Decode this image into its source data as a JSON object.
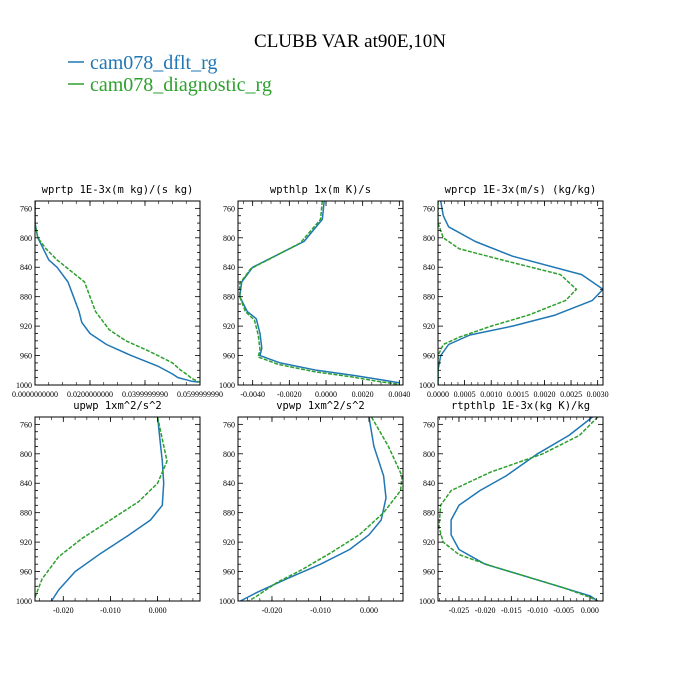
{
  "figure": {
    "title": "CLUBB VAR at90E,10N",
    "legend": [
      {
        "label": "cam078_dflt_rg",
        "color": "#1f77b4",
        "dash": false
      },
      {
        "label": "cam078_diagnostic_rg",
        "color": "#2ca02c",
        "dash": true
      }
    ]
  },
  "chart_data": [
    {
      "type": "line",
      "title": "wprtp  1E-3x(m kg)/(s kg)",
      "xlim": [
        0,
        0.06
      ],
      "ylim": [
        1000,
        750
      ],
      "xticks": [
        0,
        0.02,
        0.04,
        0.06
      ],
      "xtick_labels": [
        "0.0000000000",
        "0.0200000000",
        "0.0399999990",
        "0.0599999990"
      ],
      "yticks": [
        760,
        800,
        840,
        880,
        920,
        960,
        1000
      ],
      "series": [
        {
          "name": "cam078_dflt_rg",
          "points": [
            [
              0.0,
              750
            ],
            [
              0.0,
              780
            ],
            [
              0.001,
              800
            ],
            [
              0.003,
              815
            ],
            [
              0.005,
              830
            ],
            [
              0.008,
              840
            ],
            [
              0.012,
              860
            ],
            [
              0.014,
              880
            ],
            [
              0.016,
              900
            ],
            [
              0.017,
              915
            ],
            [
              0.02,
              930
            ],
            [
              0.026,
              945
            ],
            [
              0.035,
              960
            ],
            [
              0.045,
              975
            ],
            [
              0.05,
              985
            ],
            [
              0.052,
              990
            ],
            [
              0.055,
              993
            ],
            [
              0.057,
              995
            ],
            [
              0.0595,
              996
            ]
          ]
        },
        {
          "name": "cam078_diagnostic_rg",
          "points": [
            [
              0.0,
              750
            ],
            [
              0.0,
              780
            ],
            [
              0.001,
              800
            ],
            [
              0.004,
              815
            ],
            [
              0.008,
              830
            ],
            [
              0.013,
              845
            ],
            [
              0.018,
              860
            ],
            [
              0.02,
              880
            ],
            [
              0.022,
              900
            ],
            [
              0.024,
              910
            ],
            [
              0.027,
              925
            ],
            [
              0.033,
              940
            ],
            [
              0.042,
              955
            ],
            [
              0.05,
              970
            ],
            [
              0.053,
              980
            ],
            [
              0.055,
              985
            ],
            [
              0.057,
              991
            ],
            [
              0.059,
              995
            ],
            [
              0.0598,
              996
            ]
          ]
        }
      ]
    },
    {
      "type": "line",
      "title": "wpthlp  1x(m K)/s",
      "xlim": [
        -0.0048,
        0.0042
      ],
      "ylim": [
        1000,
        750
      ],
      "xticks": [
        -0.004,
        -0.002,
        0,
        0.002,
        0.004
      ],
      "xtick_labels": [
        "-0.0040",
        "-0.0020",
        "0.0000",
        "0.0020",
        "0.0040"
      ],
      "yticks": [
        760,
        800,
        840,
        880,
        920,
        960,
        1000
      ],
      "series": [
        {
          "name": "cam078_dflt_rg",
          "points": [
            [
              -0.0001,
              750
            ],
            [
              -0.0002,
              775
            ],
            [
              -0.0012,
              805
            ],
            [
              -0.004,
              840
            ],
            [
              -0.0046,
              860
            ],
            [
              -0.0047,
              880
            ],
            [
              -0.0043,
              900
            ],
            [
              -0.0038,
              910
            ],
            [
              -0.0036,
              930
            ],
            [
              -0.0035,
              950
            ],
            [
              -0.0036,
              960
            ],
            [
              -0.0025,
              970
            ],
            [
              -0.0005,
              980
            ],
            [
              0.0015,
              987
            ],
            [
              0.003,
              993
            ],
            [
              0.004,
              997
            ]
          ]
        },
        {
          "name": "cam078_diagnostic_rg",
          "points": [
            [
              -0.0002,
              750
            ],
            [
              -0.0003,
              775
            ],
            [
              -0.0014,
              807
            ],
            [
              -0.0041,
              842
            ],
            [
              -0.0047,
              862
            ],
            [
              -0.0047,
              880
            ],
            [
              -0.0044,
              900
            ],
            [
              -0.0039,
              912
            ],
            [
              -0.0037,
              932
            ],
            [
              -0.0036,
              952
            ],
            [
              -0.0037,
              962
            ],
            [
              -0.0026,
              972
            ],
            [
              -0.0006,
              982
            ],
            [
              0.0014,
              989
            ],
            [
              0.0028,
              995
            ],
            [
              0.004,
              999
            ]
          ]
        }
      ]
    },
    {
      "type": "line",
      "title": "wprcp  1E-3x(m/s) (kg/kg)",
      "xlim": [
        0,
        0.0031
      ],
      "ylim": [
        1000,
        750
      ],
      "xticks": [
        0,
        0.0005,
        0.001,
        0.0015,
        0.002,
        0.0025,
        0.003
      ],
      "xtick_labels": [
        "0.0000",
        "0.0005",
        "0.0010",
        "0.0015",
        "0.0020",
        "0.0025",
        "0.0030"
      ],
      "yticks": [
        760,
        800,
        840,
        880,
        920,
        960,
        1000
      ],
      "series": [
        {
          "name": "cam078_dflt_rg",
          "points": [
            [
              5e-05,
              750
            ],
            [
              0.0001,
              770
            ],
            [
              0.0002,
              785
            ],
            [
              0.0007,
              805
            ],
            [
              0.0014,
              825
            ],
            [
              0.0027,
              850
            ],
            [
              0.0031,
              870
            ],
            [
              0.0029,
              885
            ],
            [
              0.0022,
              905
            ],
            [
              0.0014,
              920
            ],
            [
              0.0006,
              932
            ],
            [
              0.0002,
              945
            ],
            [
              5e-05,
              960
            ],
            [
              0.0,
              980
            ],
            [
              0.0,
              1000
            ]
          ]
        },
        {
          "name": "cam078_diagnostic_rg",
          "points": [
            [
              0.0,
              750
            ],
            [
              0.0,
              780
            ],
            [
              0.0001,
              800
            ],
            [
              0.0004,
              815
            ],
            [
              0.0012,
              830
            ],
            [
              0.0023,
              850
            ],
            [
              0.0026,
              870
            ],
            [
              0.0024,
              885
            ],
            [
              0.0017,
              905
            ],
            [
              0.001,
              920
            ],
            [
              0.0004,
              935
            ],
            [
              0.0001,
              945
            ],
            [
              0.0,
              960
            ],
            [
              0.0,
              1000
            ]
          ]
        }
      ]
    },
    {
      "type": "line",
      "title": "upwp  1xm^2/s^2",
      "xlim": [
        -0.026,
        0.009
      ],
      "ylim": [
        1000,
        750
      ],
      "xticks": [
        -0.02,
        -0.01,
        0
      ],
      "xtick_labels": [
        "-0.020",
        "-0.010",
        "0.000"
      ],
      "yticks": [
        760,
        800,
        840,
        880,
        920,
        960,
        1000
      ],
      "series": [
        {
          "name": "cam078_dflt_rg",
          "points": [
            [
              0.0,
              750
            ],
            [
              0.0005,
              780
            ],
            [
              0.001,
              810
            ],
            [
              0.0013,
              840
            ],
            [
              0.001,
              870
            ],
            [
              -0.0015,
              890
            ],
            [
              -0.006,
              910
            ],
            [
              -0.012,
              935
            ],
            [
              -0.0175,
              960
            ],
            [
              -0.021,
              985
            ],
            [
              -0.0225,
              1000
            ]
          ]
        },
        {
          "name": "cam078_diagnostic_rg",
          "points": [
            [
              0.0,
              750
            ],
            [
              0.001,
              780
            ],
            [
              0.002,
              810
            ],
            [
              0.0,
              840
            ],
            [
              -0.004,
              865
            ],
            [
              -0.01,
              890
            ],
            [
              -0.016,
              915
            ],
            [
              -0.021,
              940
            ],
            [
              -0.0245,
              970
            ],
            [
              -0.026,
              995
            ]
          ]
        }
      ]
    },
    {
      "type": "line",
      "title": "vpwp  1xm^2/s^2",
      "xlim": [
        -0.027,
        0.007
      ],
      "ylim": [
        1000,
        750
      ],
      "xticks": [
        -0.02,
        -0.01,
        0
      ],
      "xtick_labels": [
        "-0.020",
        "-0.010",
        "0.000"
      ],
      "yticks": [
        760,
        800,
        840,
        880,
        920,
        960,
        1000
      ],
      "series": [
        {
          "name": "cam078_dflt_rg",
          "points": [
            [
              0.0,
              750
            ],
            [
              0.001,
              790
            ],
            [
              0.003,
              830
            ],
            [
              0.0035,
              860
            ],
            [
              0.0025,
              890
            ],
            [
              0.0,
              910
            ],
            [
              -0.004,
              930
            ],
            [
              -0.01,
              950
            ],
            [
              -0.017,
              970
            ],
            [
              -0.023,
              988
            ],
            [
              -0.0265,
              1000
            ]
          ]
        },
        {
          "name": "cam078_diagnostic_rg",
          "points": [
            [
              0.0005,
              750
            ],
            [
              0.004,
              790
            ],
            [
              0.0068,
              830
            ],
            [
              0.0065,
              850
            ],
            [
              0.003,
              880
            ],
            [
              -0.002,
              910
            ],
            [
              -0.008,
              935
            ],
            [
              -0.014,
              958
            ],
            [
              -0.019,
              975
            ],
            [
              -0.0235,
              995
            ],
            [
              -0.0248,
              1000
            ]
          ]
        }
      ]
    },
    {
      "type": "line",
      "title": "rtpthlp  1E-3x(kg K)/kg",
      "xlim": [
        -0.029,
        0.0025
      ],
      "ylim": [
        1000,
        750
      ],
      "xticks": [
        -0.025,
        -0.02,
        -0.015,
        -0.01,
        -0.005,
        0
      ],
      "xtick_labels": [
        "-0.025",
        "-0.020",
        "-0.015",
        "-0.010",
        "-0.005",
        "0.000"
      ],
      "yticks": [
        760,
        800,
        840,
        880,
        920,
        960,
        1000
      ],
      "series": [
        {
          "name": "cam078_dflt_rg",
          "points": [
            [
              0.0005,
              750
            ],
            [
              -0.004,
              775
            ],
            [
              -0.01,
              800
            ],
            [
              -0.016,
              830
            ],
            [
              -0.021,
              850
            ],
            [
              -0.025,
              870
            ],
            [
              -0.0265,
              890
            ],
            [
              -0.0265,
              910
            ],
            [
              -0.025,
              930
            ],
            [
              -0.02,
              950
            ],
            [
              -0.013,
              965
            ],
            [
              -0.006,
              980
            ],
            [
              0.0,
              993
            ],
            [
              0.0015,
              1000
            ]
          ]
        },
        {
          "name": "cam078_diagnostic_rg",
          "points": [
            [
              0.0015,
              750
            ],
            [
              -0.002,
              775
            ],
            [
              -0.009,
              800
            ],
            [
              -0.019,
              825
            ],
            [
              -0.0265,
              850
            ],
            [
              -0.0285,
              870
            ],
            [
              -0.0288,
              900
            ],
            [
              -0.028,
              920
            ],
            [
              -0.025,
              937
            ],
            [
              -0.019,
              952
            ],
            [
              -0.012,
              967
            ],
            [
              -0.005,
              982
            ],
            [
              0.0,
              995
            ],
            [
              0.0015,
              1000
            ]
          ]
        }
      ]
    }
  ]
}
